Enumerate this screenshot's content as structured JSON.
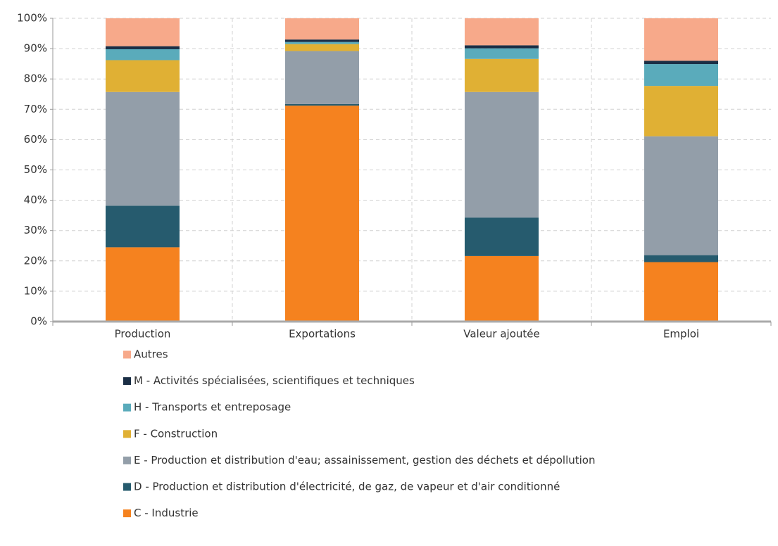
{
  "chart_data": {
    "type": "stacked_bar",
    "categories": [
      "Production",
      "Exportations",
      "Valeur ajoutée",
      "Emploi"
    ],
    "series": [
      {
        "name": "C - Industrie",
        "color": "#f5821f",
        "values": [
          24.5,
          71.2,
          21.6,
          19.6
        ]
      },
      {
        "name": "D - Production et distribution d'électricité, de gaz, de vapeur et d'air conditionné",
        "color": "#265b6e",
        "values": [
          13.7,
          0.5,
          12.7,
          2.3
        ]
      },
      {
        "name": "E - Production et distribution d'eau; assainissement, gestion des déchets et dépollution",
        "color": "#939ea9",
        "values": [
          37.5,
          17.5,
          41.4,
          39.2
        ]
      },
      {
        "name": "F - Construction",
        "color": "#e0b034",
        "values": [
          10.5,
          2.3,
          10.9,
          16.6
        ]
      },
      {
        "name": "H - Transports et entreposage",
        "color": "#5aabbb",
        "values": [
          3.6,
          0.7,
          3.5,
          7.2
        ]
      },
      {
        "name": "M - Activités spécialisées, scientifiques et techniques",
        "color": "#1a2e45",
        "values": [
          1.0,
          0.8,
          1.0,
          1.1
        ]
      },
      {
        "name": "Autres",
        "color": "#f7a98a",
        "values": [
          9.2,
          7.0,
          8.9,
          14.0
        ]
      }
    ],
    "ylim": [
      0,
      100
    ],
    "yticks": [
      {
        "value": 0,
        "label": "0%"
      },
      {
        "value": 10,
        "label": "10%"
      },
      {
        "value": 20,
        "label": "20%"
      },
      {
        "value": 30,
        "label": "30%"
      },
      {
        "value": 40,
        "label": "40%"
      },
      {
        "value": 50,
        "label": "50%"
      },
      {
        "value": 60,
        "label": "60%"
      },
      {
        "value": 70,
        "label": "70%"
      },
      {
        "value": 80,
        "label": "80%"
      },
      {
        "value": 90,
        "label": "90%"
      },
      {
        "value": 100,
        "label": "100%"
      }
    ],
    "grid": true
  }
}
